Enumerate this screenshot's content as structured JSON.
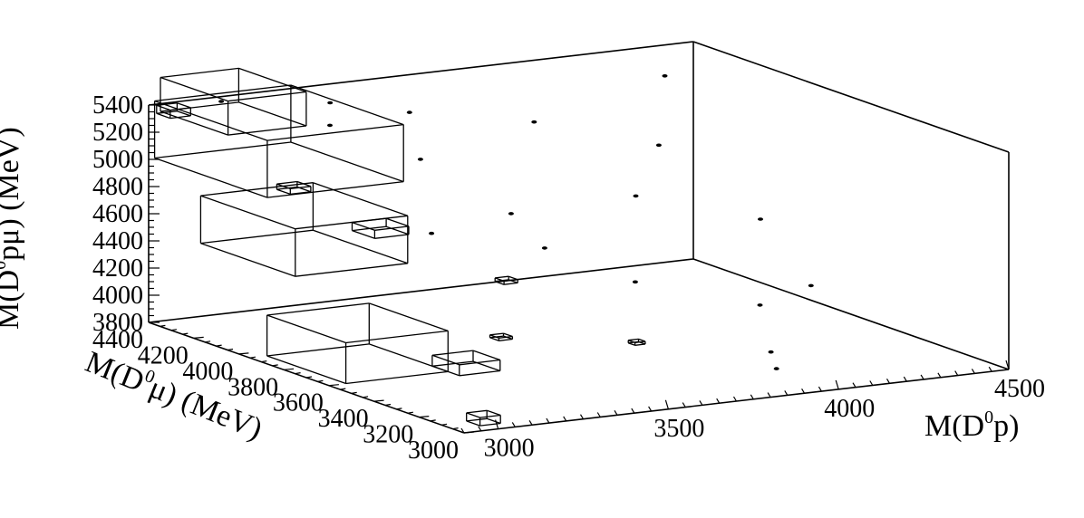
{
  "chart_data": {
    "type": "lego-3d-histogram",
    "x_axis": {
      "label_main": "M(D",
      "label_sup": "0",
      "label_end": "p)",
      "range": [
        2900,
        4500
      ],
      "ticks": [
        "3000",
        "3500",
        "4000",
        "4500"
      ]
    },
    "y_axis": {
      "label_main": "M(D",
      "label_sup": "0",
      "label_end": "μ) (MeV)",
      "range": [
        3000,
        4400
      ],
      "ticks": [
        "3000",
        "3200",
        "3400",
        "3600",
        "3800",
        "4000",
        "4200",
        "4400"
      ]
    },
    "z_axis": {
      "label_main": "M(D",
      "label_sup": "0",
      "label_end": "pμ) (MeV)",
      "range": [
        3800,
        5400
      ],
      "ticks": [
        "3800",
        "4000",
        "4200",
        "4400",
        "4600",
        "4800",
        "5000",
        "5200",
        "5400"
      ]
    },
    "boxes": [
      {
        "x": 2980,
        "y": 3050,
        "z": 3800,
        "dx": 60,
        "dy": 60,
        "dz": 60
      },
      {
        "x": 2950,
        "y": 3600,
        "z": 3800,
        "dx": 300,
        "dy": 350,
        "dz": 300
      },
      {
        "x": 3250,
        "y": 3550,
        "z": 3800,
        "dx": 120,
        "dy": 120,
        "dz": 80
      },
      {
        "x": 3300,
        "y": 3450,
        "z": 4100,
        "dx": 40,
        "dy": 40,
        "dz": 20
      },
      {
        "x": 3000,
        "y": 3900,
        "z": 4400,
        "dx": 330,
        "dy": 420,
        "dz": 350
      },
      {
        "x": 3200,
        "y": 3850,
        "z": 4650,
        "dx": 100,
        "dy": 100,
        "dz": 60
      },
      {
        "x": 3050,
        "y": 4100,
        "z": 4850,
        "dx": 400,
        "dy": 500,
        "dz": 420
      },
      {
        "x": 3100,
        "y": 4350,
        "z": 5150,
        "dx": 230,
        "dy": 300,
        "dz": 250
      },
      {
        "x": 2950,
        "y": 4380,
        "z": 5300,
        "dx": 60,
        "dy": 60,
        "dz": 60
      },
      {
        "x": 3250,
        "y": 4300,
        "z": 4700,
        "dx": 60,
        "dy": 60,
        "dz": 40
      },
      {
        "x": 3580,
        "y": 3850,
        "z": 4200,
        "dx": 40,
        "dy": 40,
        "dz": 25
      },
      {
        "x": 3700,
        "y": 3450,
        "z": 3950,
        "dx": 30,
        "dy": 30,
        "dz": 20
      }
    ],
    "points": [
      {
        "x": 3100,
        "y": 4380,
        "z": 5380
      },
      {
        "x": 3400,
        "y": 4350,
        "z": 5300
      },
      {
        "x": 3600,
        "y": 4300,
        "z": 5200
      },
      {
        "x": 3700,
        "y": 4000,
        "z": 4600
      },
      {
        "x": 3900,
        "y": 4200,
        "z": 5100
      },
      {
        "x": 4000,
        "y": 3900,
        "z": 4700
      },
      {
        "x": 4200,
        "y": 4100,
        "z": 4900
      },
      {
        "x": 4300,
        "y": 3800,
        "z": 4500
      },
      {
        "x": 3400,
        "y": 3900,
        "z": 4600
      },
      {
        "x": 3800,
        "y": 3600,
        "z": 4300
      },
      {
        "x": 4100,
        "y": 3500,
        "z": 4100
      },
      {
        "x": 4000,
        "y": 3300,
        "z": 3900
      },
      {
        "x": 3600,
        "y": 3700,
        "z": 4550
      },
      {
        "x": 3500,
        "y": 4100,
        "z": 5000
      },
      {
        "x": 3300,
        "y": 4200,
        "z": 5250
      },
      {
        "x": 4350,
        "y": 4300,
        "z": 5250
      },
      {
        "x": 4250,
        "y": 3500,
        "z": 4200
      },
      {
        "x": 3950,
        "y": 3200,
        "z": 3850
      }
    ]
  }
}
